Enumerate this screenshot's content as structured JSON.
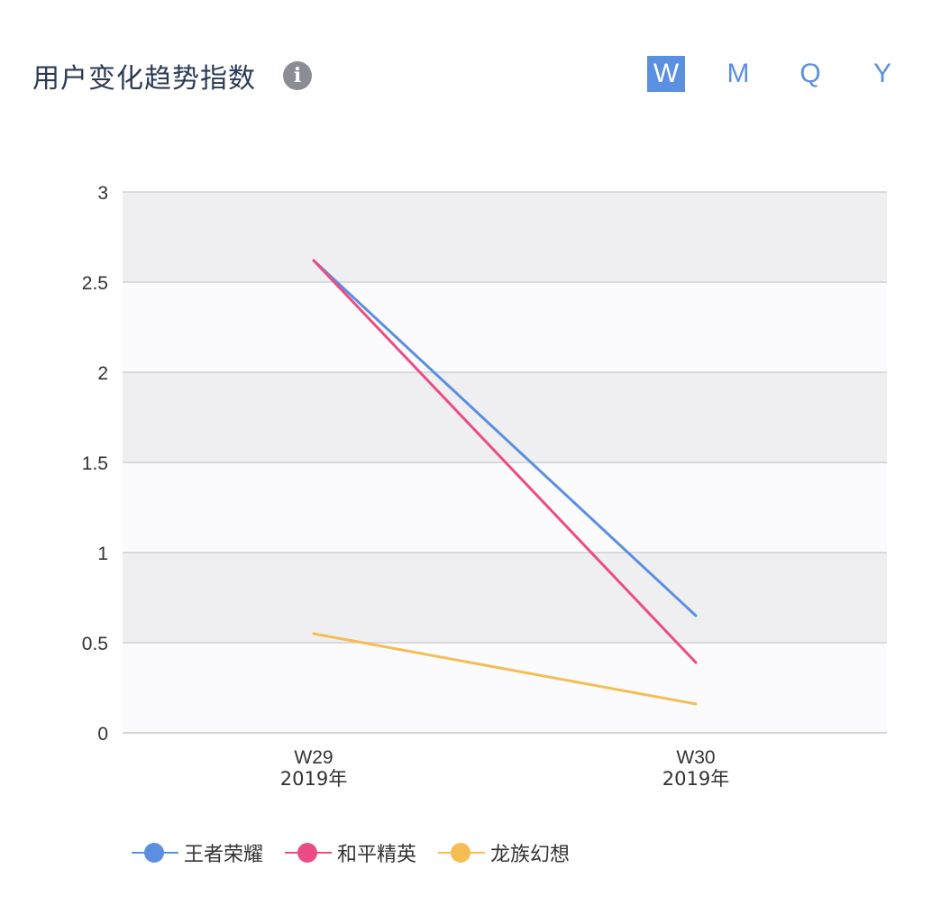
{
  "header": {
    "title": "用户变化趋势指数",
    "info_icon": "info-icon"
  },
  "periods": [
    {
      "label": "W",
      "active": true
    },
    {
      "label": "M",
      "active": false
    },
    {
      "label": "Q",
      "active": false
    },
    {
      "label": "Y",
      "active": false
    }
  ],
  "chart_data": {
    "type": "line",
    "categories": [
      {
        "week": "W29",
        "year": "2019年"
      },
      {
        "week": "W30",
        "year": "2019年"
      }
    ],
    "ylim": [
      0,
      3
    ],
    "yticks": [
      "0",
      "0.5",
      "1",
      "1.5",
      "2",
      "2.5",
      "3"
    ],
    "grid": true,
    "legend_position": "bottom-left",
    "series": [
      {
        "name": "王者荣耀",
        "color": "#5b8fe0",
        "values": [
          2.62,
          0.65
        ]
      },
      {
        "name": "和平精英",
        "color": "#ec4c85",
        "values": [
          2.62,
          0.39
        ]
      },
      {
        "name": "龙族幻想",
        "color": "#f6bd55",
        "values": [
          0.55,
          0.16
        ]
      }
    ]
  }
}
